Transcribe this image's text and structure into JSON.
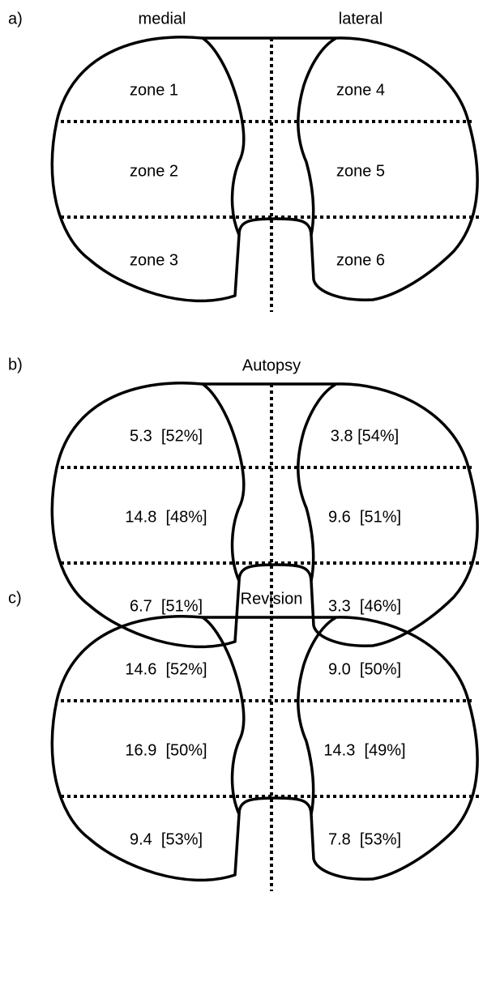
{
  "panel_a": {
    "label": "a)",
    "medial": "medial",
    "lateral": "lateral",
    "zones": [
      "zone 1",
      "zone 2",
      "zone 3",
      "zone 4",
      "zone 5",
      "zone 6"
    ]
  },
  "panel_b": {
    "label": "b)",
    "title": "Autopsy",
    "zones": [
      "5.3  [52%]",
      "14.8  [48%]",
      "6.7  [51%]",
      "3.8 [54%]",
      "9.6  [51%]",
      "3.3  [46%]"
    ]
  },
  "panel_c": {
    "label": "c)",
    "title": "Revision",
    "zones": [
      "14.6  [52%]",
      "16.9  [50%]",
      "9.4  [53%]",
      "9.0  [50%]",
      "14.3  [49%]",
      "7.8  [53%]"
    ]
  }
}
